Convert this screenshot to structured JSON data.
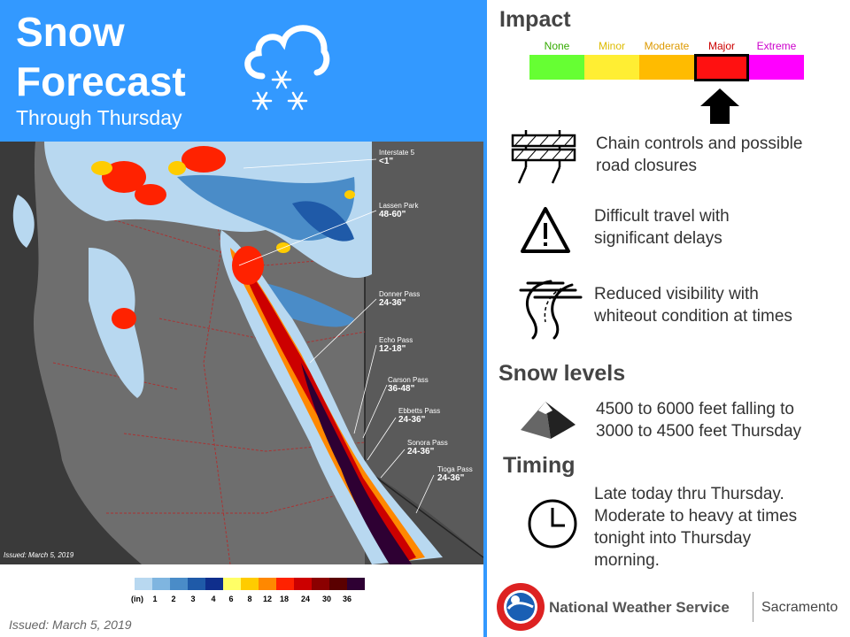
{
  "header": {
    "title_line1": "Snow",
    "title_line2": "Forecast",
    "subtitle": "Through Thursday"
  },
  "colors": {
    "header_blue": "#3399ff",
    "map_bg": "#4a4a4a"
  },
  "map": {
    "issued": "Issued: March 5, 2019",
    "labels": [
      {
        "name": "Interstate 5",
        "value": "<1\""
      },
      {
        "name": "Lassen Park",
        "value": "48-60\""
      },
      {
        "name": "Donner Pass",
        "value": "24-36\""
      },
      {
        "name": "Echo Pass",
        "value": "12-18\""
      },
      {
        "name": "Carson Pass",
        "value": "36-48\""
      },
      {
        "name": "Ebbetts Pass",
        "value": "24-36\""
      },
      {
        "name": "Sonora Pass",
        "value": "24-36\""
      },
      {
        "name": "Tioga Pass",
        "value": "24-36\""
      }
    ]
  },
  "legend": {
    "unit": "(in)",
    "ticks": [
      "1",
      "2",
      "3",
      "4",
      "6",
      "8",
      "12",
      "18",
      "24",
      "30",
      "36"
    ],
    "colors": [
      "#b8d8f0",
      "#7fb5e0",
      "#4a8cc8",
      "#1f5aa8",
      "#0f2e8c",
      "#ffff66",
      "#ffcc00",
      "#ff8800",
      "#ff2200",
      "#cc0000",
      "#8b0000",
      "#5a0000",
      "#2e0033"
    ]
  },
  "footer": {
    "issued": "Issued: March 5, 2019",
    "agency": "National Weather Service",
    "office": "Sacramento"
  },
  "impact": {
    "heading": "Impact",
    "levels": [
      {
        "label": "None",
        "color": "#66ff33",
        "label_color": "#33aa00"
      },
      {
        "label": "Minor",
        "color": "#ffee33",
        "label_color": "#ddbb00"
      },
      {
        "label": "Moderate",
        "color": "#ffbb00",
        "label_color": "#dd9900"
      },
      {
        "label": "Major",
        "color": "#ff1111",
        "label_color": "#cc0000"
      },
      {
        "label": "Extreme",
        "color": "#ff00ff",
        "label_color": "#cc00cc"
      }
    ],
    "selected_level": "Major",
    "items": [
      {
        "icon": "road-barrier-icon",
        "text_line1": "Chain controls and possible",
        "text_line2": "road closures"
      },
      {
        "icon": "warning-triangle-icon",
        "text_line1": "Difficult travel with",
        "text_line2": "significant delays"
      },
      {
        "icon": "low-visibility-road-icon",
        "text_line1": "Reduced visibility with",
        "text_line2": "whiteout condition at times"
      }
    ]
  },
  "snow_levels": {
    "heading": "Snow levels",
    "icon": "mountain-icon",
    "text_line1": "4500 to 6000 feet falling to",
    "text_line2": "3000 to 4500 feet Thursday"
  },
  "timing": {
    "heading": "Timing",
    "icon": "clock-icon",
    "lines": [
      "Late today thru Thursday.",
      "Moderate to heavy at times",
      "tonight into Thursday",
      "morning."
    ]
  }
}
